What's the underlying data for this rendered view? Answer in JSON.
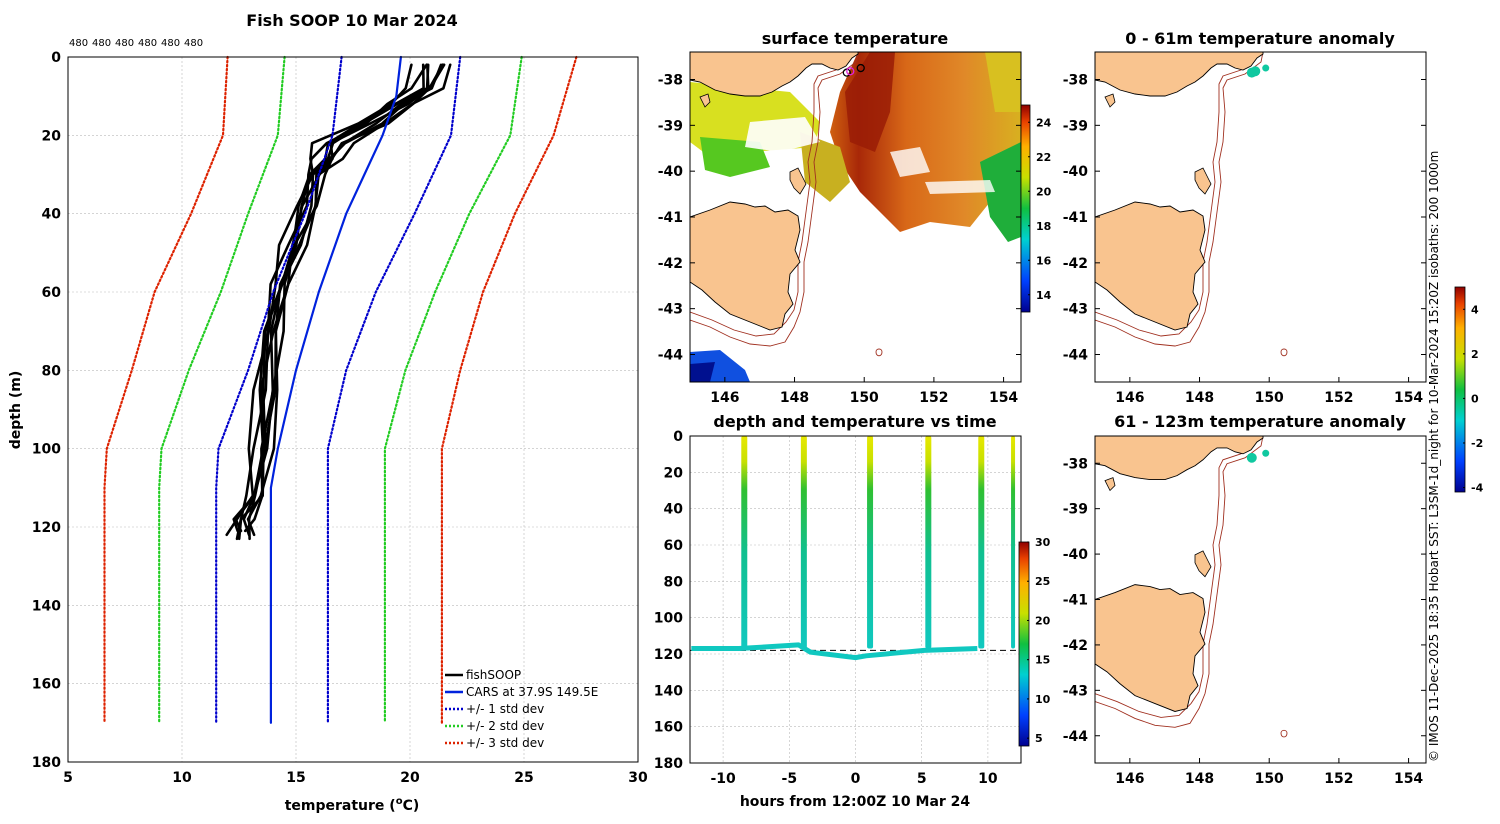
{
  "profile": {
    "title": "Fish SOOP 10 Mar 2024",
    "top_counts": [
      "480",
      "480",
      "480",
      "480",
      "480",
      "480"
    ],
    "xlabel": "temperature (",
    "xlabel_sup": "o",
    "xlabel_end": "C)",
    "ylabel": "depth (m)",
    "legend": [
      "fishSOOP",
      "CARS at 37.9S 149.5E",
      "+/- 1 std dev",
      "+/- 2 std dev",
      "+/- 3 std dev"
    ]
  },
  "sst": {
    "title": "surface temperature"
  },
  "anom1": {
    "title": "0 - 61m temperature anomaly"
  },
  "anom2": {
    "title": "61 - 123m temperature anomaly"
  },
  "depthtime": {
    "title": "depth and temperature vs time",
    "xlabel": "hours from 12:00Z 10 Mar 24"
  },
  "credit": "© IMOS 11-Dec-2025 18:35 Hobart SST: L3SM-1d_night for 10-Mar-2024 15:20Z isobaths: 200  1000m",
  "colors": {
    "fish": "#000000",
    "cars": "#0022dd",
    "sd1": "#0000cc",
    "sd2": "#22cc22",
    "sd3": "#dd2200",
    "land": "#f9c48f",
    "iso": "#a03020"
  },
  "chart_data": [
    {
      "type": "line",
      "title": "Fish SOOP 10 Mar 2024",
      "xlabel": "temperature (oC)",
      "ylabel": "depth (m)",
      "xlim": [
        5,
        30
      ],
      "ylim": [
        180,
        0
      ],
      "xticks": [
        5,
        10,
        15,
        20,
        25,
        30
      ],
      "yticks": [
        0,
        20,
        40,
        60,
        80,
        100,
        120,
        140,
        160,
        180
      ],
      "series": [
        {
          "name": "fishSOOP",
          "points": [
            [
              20.8,
              2
            ],
            [
              20.5,
              8
            ],
            [
              19.5,
              12
            ],
            [
              18.2,
              17
            ],
            [
              16.5,
              22
            ],
            [
              16.2,
              26
            ],
            [
              15.8,
              30
            ],
            [
              15.4,
              38
            ],
            [
              14.8,
              48
            ],
            [
              14.3,
              58
            ],
            [
              13.9,
              70
            ],
            [
              13.6,
              85
            ],
            [
              13.4,
              100
            ],
            [
              13.2,
              112
            ],
            [
              12.6,
              118
            ],
            [
              12.5,
              122
            ]
          ]
        },
        {
          "name": "CARS at 37.9S 149.5E",
          "points": [
            [
              19.6,
              0
            ],
            [
              19.4,
              10
            ],
            [
              18.8,
              20
            ],
            [
              18.0,
              30
            ],
            [
              17.2,
              40
            ],
            [
              16.0,
              60
            ],
            [
              15.0,
              80
            ],
            [
              14.2,
              100
            ],
            [
              13.9,
              110
            ],
            [
              13.9,
              170
            ]
          ]
        },
        {
          "name": "+/- 1 std dev",
          "points": [
            [
              17.0,
              0
            ],
            [
              16.6,
              20
            ],
            [
              15.4,
              40
            ],
            [
              14.0,
              60
            ],
            [
              12.9,
              80
            ],
            [
              11.6,
              100
            ],
            [
              11.5,
              110
            ],
            [
              11.5,
              170
            ]
          ]
        },
        {
          "name": "+/- 1 std dev",
          "points": [
            [
              22.2,
              0
            ],
            [
              21.8,
              20
            ],
            [
              20.2,
              40
            ],
            [
              18.5,
              60
            ],
            [
              17.2,
              80
            ],
            [
              16.4,
              100
            ],
            [
              16.4,
              170
            ]
          ]
        },
        {
          "name": "+/- 2 std dev",
          "points": [
            [
              14.5,
              0
            ],
            [
              14.2,
              20
            ],
            [
              12.9,
              40
            ],
            [
              11.7,
              60
            ],
            [
              10.3,
              80
            ],
            [
              9.1,
              100
            ],
            [
              9.0,
              110
            ],
            [
              9.0,
              170
            ]
          ]
        },
        {
          "name": "+/- 2 std dev",
          "points": [
            [
              24.9,
              0
            ],
            [
              24.4,
              20
            ],
            [
              22.6,
              40
            ],
            [
              21.1,
              60
            ],
            [
              19.8,
              80
            ],
            [
              18.9,
              100
            ],
            [
              18.9,
              170
            ]
          ]
        },
        {
          "name": "+/- 3 std dev",
          "points": [
            [
              12.0,
              0
            ],
            [
              11.8,
              20
            ],
            [
              10.4,
              40
            ],
            [
              8.8,
              60
            ],
            [
              7.8,
              80
            ],
            [
              6.7,
              100
            ],
            [
              6.6,
              110
            ],
            [
              6.6,
              170
            ]
          ]
        },
        {
          "name": "+/- 3 std dev",
          "points": [
            [
              27.3,
              0
            ],
            [
              26.3,
              20
            ],
            [
              24.6,
              40
            ],
            [
              23.2,
              60
            ],
            [
              22.2,
              80
            ],
            [
              21.4,
              100
            ],
            [
              21.4,
              170
            ]
          ]
        }
      ]
    },
    {
      "type": "heatmap",
      "title": "surface temperature",
      "xlim": [
        145,
        154.5
      ],
      "ylim": [
        -44.6,
        -37.4
      ],
      "xticks": [
        146,
        148,
        150,
        152,
        154
      ],
      "yticks": [
        -38,
        -39,
        -40,
        -41,
        -42,
        -43,
        -44
      ],
      "colorbar": {
        "range": [
          13,
          25
        ],
        "ticks": [
          14,
          16,
          18,
          20,
          22,
          24
        ]
      }
    },
    {
      "type": "scatter",
      "title": "depth and temperature vs time",
      "xlabel": "hours from 12:00Z 10 Mar 24",
      "xlim": [
        -12.5,
        12.5
      ],
      "ylim": [
        180,
        0
      ],
      "xticks": [
        -10,
        -5,
        0,
        5,
        10
      ],
      "yticks": [
        0,
        20,
        40,
        60,
        80,
        100,
        120,
        140,
        160,
        180
      ],
      "colorbar": {
        "range": [
          4,
          30
        ],
        "ticks": [
          5,
          10,
          15,
          20,
          25,
          30
        ]
      },
      "cast_hours": [
        -8.4,
        -3.9,
        1.1,
        5.5,
        9.5,
        11.9
      ]
    },
    {
      "type": "scatter",
      "title": "0 - 61m temperature anomaly",
      "xlim": [
        145,
        154.5
      ],
      "ylim": [
        -44.6,
        -37.4
      ],
      "xticks": [
        146,
        148,
        150,
        152,
        154
      ],
      "yticks": [
        -38,
        -39,
        -40,
        -41,
        -42,
        -43,
        -44
      ],
      "points": [
        [
          149.5,
          -37.85
        ],
        [
          149.6,
          -37.82
        ],
        [
          149.9,
          -37.75
        ]
      ],
      "colorbar": {
        "range": [
          -4.2,
          5
        ],
        "ticks": [
          -4,
          -2,
          0,
          2,
          4
        ]
      }
    },
    {
      "type": "scatter",
      "title": "61 - 123m temperature anomaly",
      "xlim": [
        145,
        154.5
      ],
      "ylim": [
        -44.6,
        -37.4
      ],
      "xticks": [
        146,
        148,
        150,
        152,
        154
      ],
      "yticks": [
        -38,
        -39,
        -40,
        -41,
        -42,
        -43,
        -44
      ],
      "points": [
        [
          149.5,
          -37.88
        ],
        [
          149.9,
          -37.78
        ]
      ]
    }
  ]
}
